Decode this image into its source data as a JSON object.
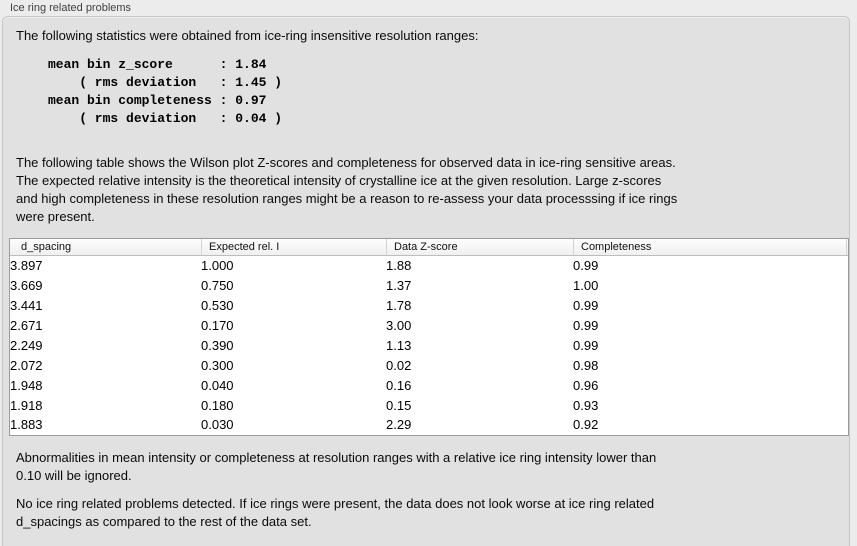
{
  "colors": {
    "outer_bg": "#ececec",
    "panel_bg": "#e1e1e1",
    "panel_border": "#c6c6c6",
    "table_bg": "#ffffff",
    "table_border": "#9b9b9b",
    "header_separator": "#d2d2d2",
    "text": "#0a0a0a"
  },
  "section": {
    "title": "Ice ring related problems"
  },
  "panel": {
    "intro": "The following statistics were obtained from ice-ring insensitive resolution ranges:",
    "stats_block": "mean bin z_score      : 1.84\n    ( rms deviation   : 1.45 )\nmean bin completeness : 0.97\n    ( rms deviation   : 0.04 )",
    "table_description": "The following table shows the Wilson plot Z-scores and completeness for observed data in ice-ring sensitive areas.\nThe expected relative intensity is the theoretical intensity of crystalline ice at the given resolution. Large z-scores\nand high completeness in these resolution ranges might be a reason to re-assess your data processsing if ice rings\nwere present.",
    "note_abnormalities": "Abnormalities in mean intensity or completeness at resolution ranges with a relative ice ring intensity lower than\n0.10 will be ignored.",
    "conclusion": "No ice ring related problems detected. If ice rings were present, the data does not look worse at ice ring related\nd_spacings as compared to the rest of the data set."
  },
  "table": {
    "columns": [
      "d_spacing",
      "Expected rel. I",
      "Data Z-score",
      "Completeness"
    ],
    "rows": [
      [
        "3.897",
        "1.000",
        "1.88",
        "0.99"
      ],
      [
        "3.669",
        "0.750",
        "1.37",
        "1.00"
      ],
      [
        "3.441",
        "0.530",
        "1.78",
        "0.99"
      ],
      [
        "2.671",
        "0.170",
        "3.00",
        "0.99"
      ],
      [
        "2.249",
        "0.390",
        "1.13",
        "0.99"
      ],
      [
        "2.072",
        "0.300",
        "0.02",
        "0.98"
      ],
      [
        "1.948",
        "0.040",
        "0.16",
        "0.96"
      ],
      [
        "1.918",
        "0.180",
        "0.15",
        "0.93"
      ],
      [
        "1.883",
        "0.030",
        "2.29",
        "0.92"
      ]
    ]
  }
}
